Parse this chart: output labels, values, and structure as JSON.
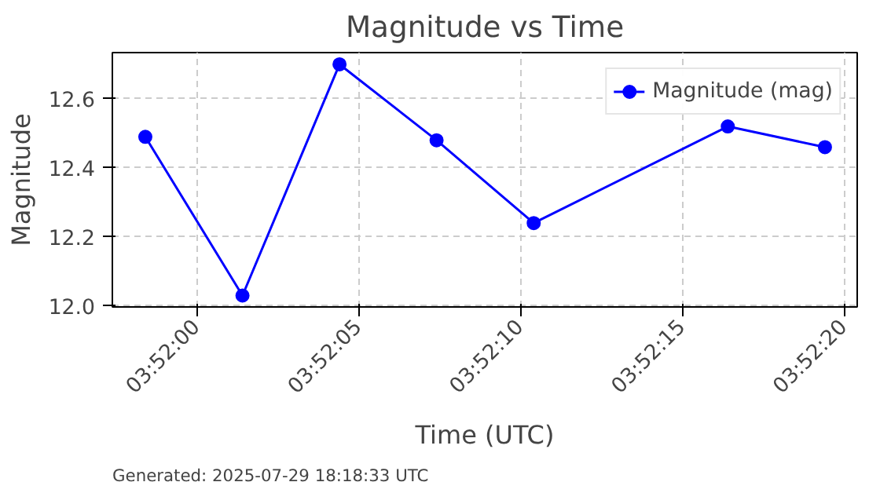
{
  "chart_data": {
    "type": "line",
    "title": "Magnitude vs Time",
    "xlabel": "Time (UTC)",
    "ylabel": "Magnitude",
    "x": [
      3.866222,
      3.867056,
      3.867889,
      3.868722,
      3.869556,
      3.871222,
      3.872056
    ],
    "series": [
      {
        "name": "Magnitude (mag)",
        "color": "#0000ff",
        "values": [
          12.49,
          12.03,
          12.7,
          12.48,
          12.24,
          12.52,
          12.46
        ]
      }
    ],
    "xlim": [
      3.865939,
      3.872333
    ],
    "xticks": [
      {
        "value": 3.866667,
        "label": "03:52:00"
      },
      {
        "value": 3.868056,
        "label": "03:52:05"
      },
      {
        "value": 3.869444,
        "label": "03:52:10"
      },
      {
        "value": 3.870833,
        "label": "03:52:15"
      },
      {
        "value": 3.872222,
        "label": "03:52:20"
      }
    ],
    "ylim": [
      11.997,
      12.734
    ],
    "yticks": [
      {
        "value": 12.0,
        "label": "12.0"
      },
      12.2,
      12.4,
      12.6
    ],
    "grid": true,
    "legend": "top right",
    "marker": "circle",
    "line_style": "solid",
    "annotations": [
      "Generated: 2025-07-29 18:18:33 UTC"
    ]
  }
}
